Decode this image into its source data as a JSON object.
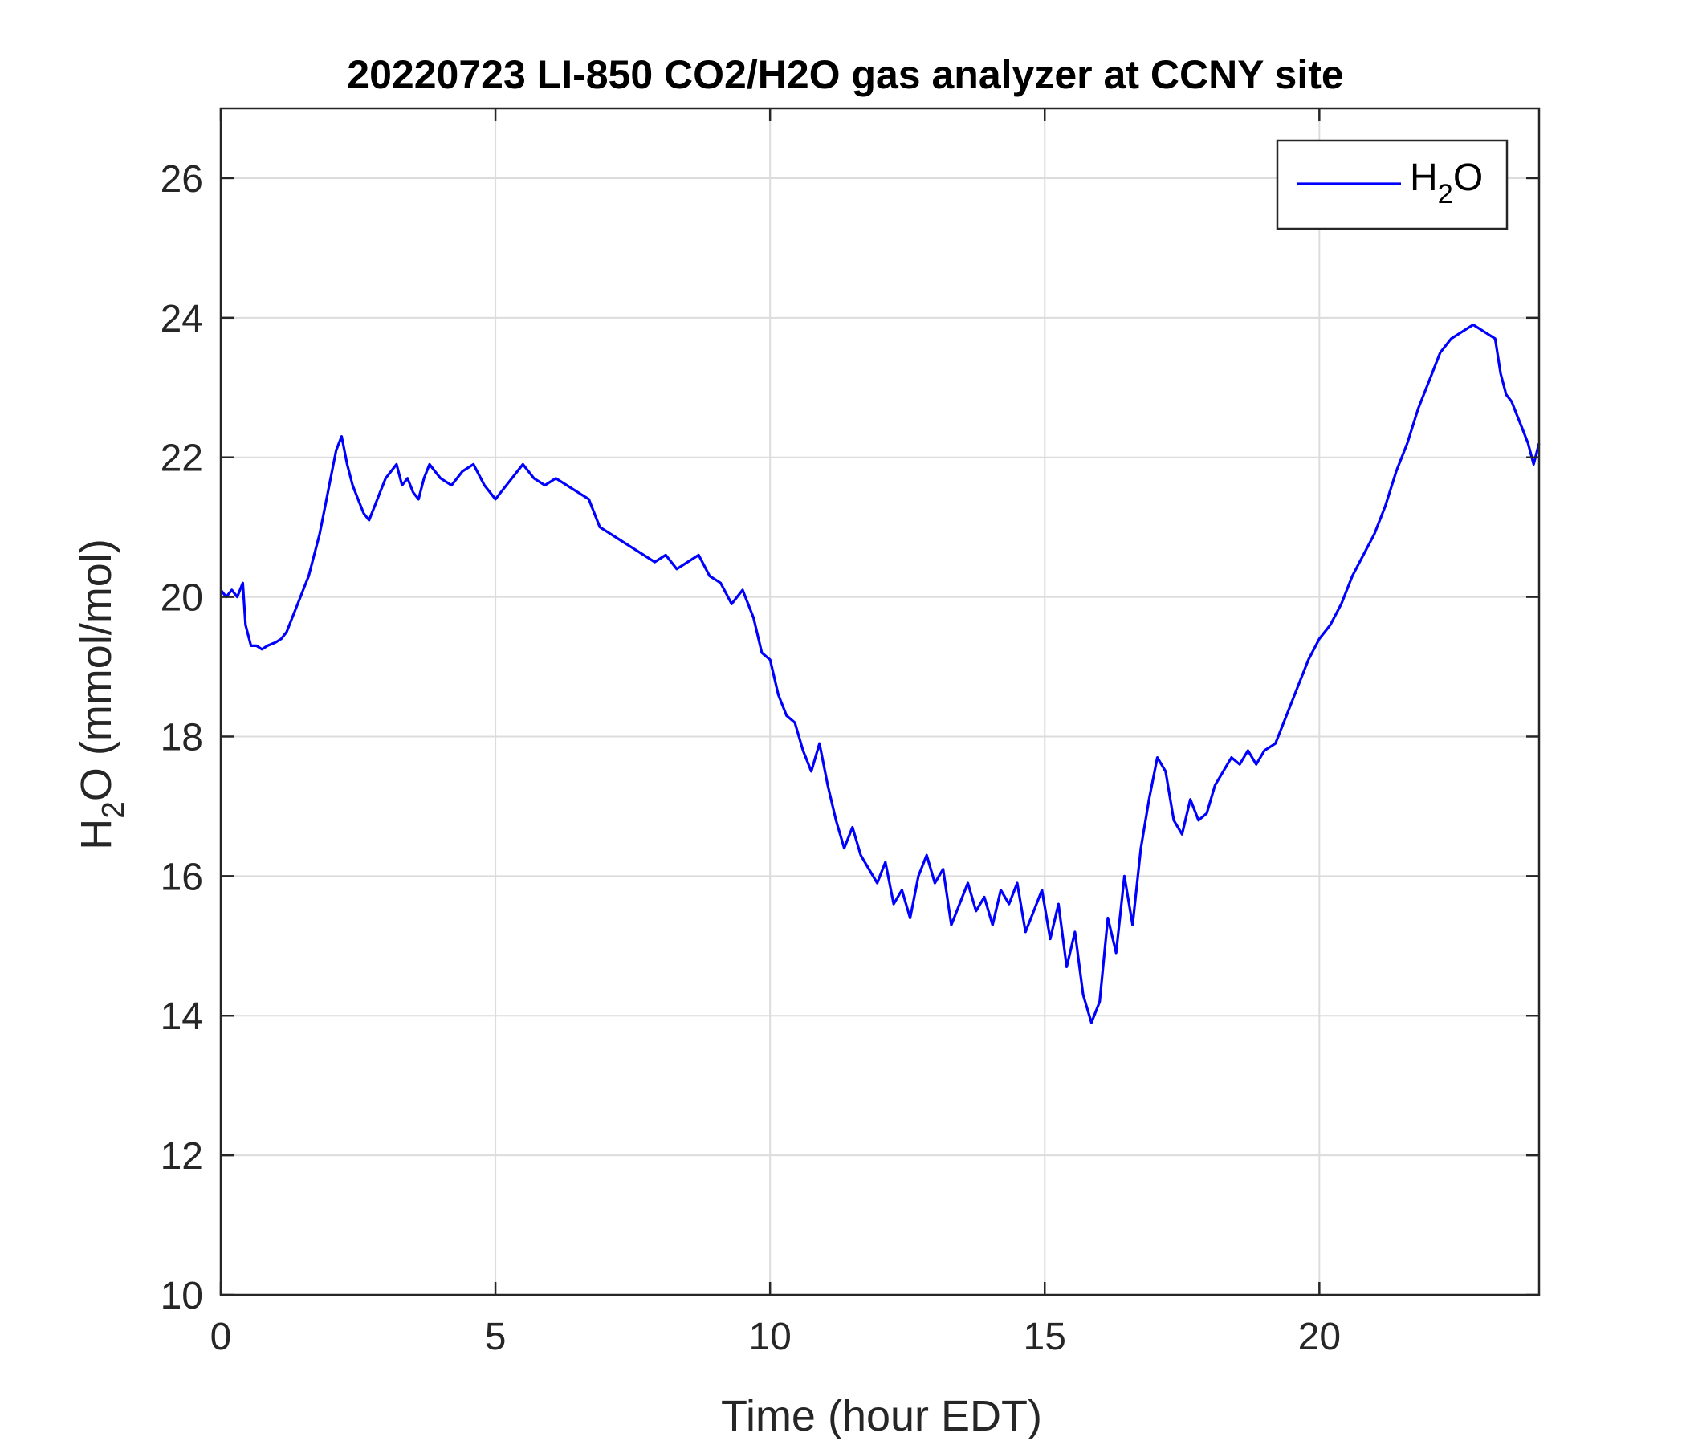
{
  "chart_data": {
    "type": "line",
    "title": "20220723 LI-850 CO2/H2O gas analyzer at CCNY site",
    "xlabel": "Time (hour EDT)",
    "ylabel": {
      "prefix": "H",
      "subscript": "2",
      "suffix": "O (mmol/mol)"
    },
    "xlim": [
      0,
      24
    ],
    "ylim": [
      10,
      27
    ],
    "xticks": [
      0,
      5,
      10,
      15,
      20
    ],
    "yticks": [
      10,
      12,
      14,
      16,
      18,
      20,
      22,
      24,
      26
    ],
    "grid": true,
    "legend_position": "top-right",
    "series": [
      {
        "name": {
          "prefix": "H",
          "subscript": "2",
          "suffix": "O"
        },
        "color": "#0000ff",
        "x": [
          0,
          0.1,
          0.2,
          0.3,
          0.4,
          0.45,
          0.55,
          0.65,
          0.75,
          0.85,
          1.0,
          1.1,
          1.2,
          1.3,
          1.4,
          1.5,
          1.6,
          1.7,
          1.8,
          1.9,
          2.0,
          2.1,
          2.2,
          2.3,
          2.4,
          2.5,
          2.6,
          2.7,
          2.8,
          2.9,
          3.0,
          3.1,
          3.2,
          3.3,
          3.4,
          3.5,
          3.6,
          3.7,
          3.8,
          3.9,
          4.0,
          4.2,
          4.4,
          4.6,
          4.8,
          5.0,
          5.1,
          5.3,
          5.5,
          5.7,
          5.9,
          6.1,
          6.3,
          6.5,
          6.7,
          6.9,
          7.1,
          7.3,
          7.5,
          7.7,
          7.9,
          8.1,
          8.3,
          8.5,
          8.7,
          8.9,
          9.1,
          9.3,
          9.5,
          9.7,
          9.85,
          10.0,
          10.15,
          10.3,
          10.45,
          10.6,
          10.75,
          10.9,
          11.05,
          11.2,
          11.35,
          11.5,
          11.65,
          11.8,
          11.95,
          12.1,
          12.25,
          12.4,
          12.55,
          12.7,
          12.85,
          13.0,
          13.15,
          13.3,
          13.45,
          13.6,
          13.75,
          13.9,
          14.05,
          14.2,
          14.35,
          14.5,
          14.65,
          14.8,
          14.95,
          15.1,
          15.25,
          15.4,
          15.55,
          15.7,
          15.85,
          16.0,
          16.15,
          16.3,
          16.45,
          16.6,
          16.75,
          16.9,
          17.05,
          17.2,
          17.35,
          17.5,
          17.65,
          17.8,
          17.95,
          18.1,
          18.25,
          18.4,
          18.55,
          18.7,
          18.85,
          19.0,
          19.2,
          19.4,
          19.6,
          19.8,
          20.0,
          20.2,
          20.4,
          20.6,
          20.8,
          21.0,
          21.2,
          21.4,
          21.6,
          21.8,
          22.0,
          22.2,
          22.4,
          22.6,
          22.8,
          23.0,
          23.2,
          23.3,
          23.4,
          23.5,
          23.6,
          23.7,
          23.8,
          23.9,
          24.0
        ],
        "y": [
          20.1,
          20.0,
          20.1,
          20.0,
          20.2,
          19.6,
          19.3,
          19.3,
          19.25,
          19.3,
          19.35,
          19.4,
          19.5,
          19.7,
          19.9,
          20.1,
          20.3,
          20.6,
          20.9,
          21.3,
          21.7,
          22.1,
          22.3,
          21.9,
          21.6,
          21.4,
          21.2,
          21.1,
          21.3,
          21.5,
          21.7,
          21.8,
          21.9,
          21.6,
          21.7,
          21.5,
          21.4,
          21.7,
          21.9,
          21.8,
          21.7,
          21.6,
          21.8,
          21.9,
          21.6,
          21.4,
          21.5,
          21.7,
          21.9,
          21.7,
          21.6,
          21.7,
          21.6,
          21.5,
          21.4,
          21.0,
          20.9,
          20.8,
          20.7,
          20.6,
          20.5,
          20.6,
          20.4,
          20.5,
          20.6,
          20.3,
          20.2,
          19.9,
          20.1,
          19.7,
          19.2,
          19.1,
          18.6,
          18.3,
          18.2,
          17.8,
          17.5,
          17.9,
          17.3,
          16.8,
          16.4,
          16.7,
          16.3,
          16.1,
          15.9,
          16.2,
          15.6,
          15.8,
          15.4,
          16.0,
          16.3,
          15.9,
          16.1,
          15.3,
          15.6,
          15.9,
          15.5,
          15.7,
          15.3,
          15.8,
          15.6,
          15.9,
          15.2,
          15.5,
          15.8,
          15.1,
          15.6,
          14.7,
          15.2,
          14.3,
          13.9,
          14.2,
          15.4,
          14.9,
          16.0,
          15.3,
          16.4,
          17.1,
          17.7,
          17.5,
          16.8,
          16.6,
          17.1,
          16.8,
          16.9,
          17.3,
          17.5,
          17.7,
          17.6,
          17.8,
          17.6,
          17.8,
          17.9,
          18.3,
          18.7,
          19.1,
          19.4,
          19.6,
          19.9,
          20.3,
          20.6,
          20.9,
          21.3,
          21.8,
          22.2,
          22.7,
          23.1,
          23.5,
          23.7,
          23.8,
          23.9,
          23.8,
          23.7,
          23.2,
          22.9,
          22.8,
          22.6,
          22.4,
          22.2,
          21.9,
          22.2
        ]
      }
    ]
  }
}
